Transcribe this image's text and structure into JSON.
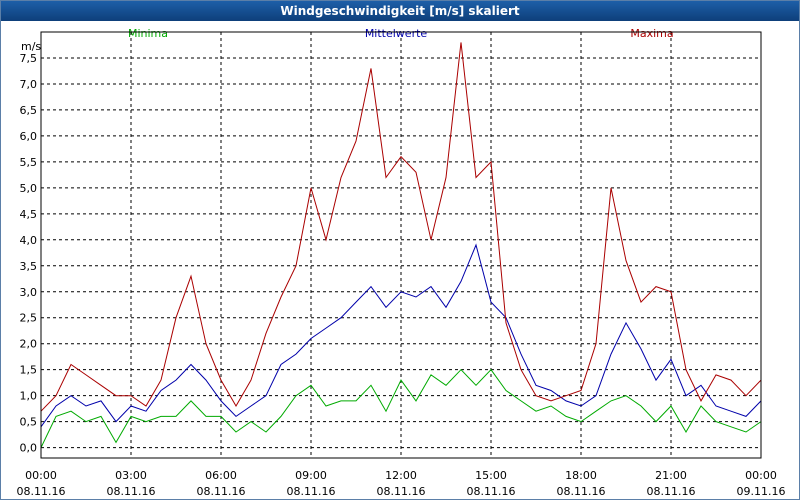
{
  "window": {
    "title": "Windgeschwindigkeit [m/s] skaliert"
  },
  "chart_data": {
    "type": "line",
    "title": "Windgeschwindigkeit [m/s] skaliert",
    "ylabel": "m/s",
    "ylim": [
      -0.2,
      8.0
    ],
    "grid": true,
    "legend_placement": "top",
    "y_ticks": [
      "0,0",
      "0,5",
      "1,0",
      "1,5",
      "2,0",
      "2,5",
      "3,0",
      "3,5",
      "4,0",
      "4,5",
      "5,0",
      "5,5",
      "6,0",
      "6,5",
      "7,0",
      "7,5"
    ],
    "x_ticks": [
      {
        "time": "00:00",
        "date": "08.11.16"
      },
      {
        "time": "03:00",
        "date": "08.11.16"
      },
      {
        "time": "06:00",
        "date": "08.11.16"
      },
      {
        "time": "09:00",
        "date": "08.11.16"
      },
      {
        "time": "12:00",
        "date": "08.11.16"
      },
      {
        "time": "15:00",
        "date": "08.11.16"
      },
      {
        "time": "18:00",
        "date": "08.11.16"
      },
      {
        "time": "21:00",
        "date": "08.11.16"
      },
      {
        "time": "00:00",
        "date": "09.11.16"
      }
    ],
    "x": [
      "00:00",
      "00:30",
      "01:00",
      "01:30",
      "02:00",
      "02:30",
      "03:00",
      "03:30",
      "04:00",
      "04:30",
      "05:00",
      "05:30",
      "06:00",
      "06:30",
      "07:00",
      "07:30",
      "08:00",
      "08:30",
      "09:00",
      "09:30",
      "10:00",
      "10:30",
      "11:00",
      "11:30",
      "12:00",
      "12:30",
      "13:00",
      "13:30",
      "14:00",
      "14:30",
      "15:00",
      "15:30",
      "16:00",
      "16:30",
      "17:00",
      "17:30",
      "18:00",
      "18:30",
      "19:00",
      "19:30",
      "20:00",
      "20:30",
      "21:00",
      "21:30",
      "22:00",
      "22:30",
      "23:00",
      "23:30",
      "00:00"
    ],
    "series": [
      {
        "name": "Minima",
        "color": "#00aa00",
        "values": [
          0.0,
          0.6,
          0.7,
          0.5,
          0.6,
          0.1,
          0.6,
          0.5,
          0.6,
          0.6,
          0.9,
          0.6,
          0.6,
          0.3,
          0.5,
          0.3,
          0.6,
          1.0,
          1.2,
          0.8,
          0.9,
          0.9,
          1.2,
          0.7,
          1.3,
          0.9,
          1.4,
          1.2,
          1.5,
          1.2,
          1.5,
          1.1,
          0.9,
          0.7,
          0.8,
          0.6,
          0.5,
          0.7,
          0.9,
          1.0,
          0.8,
          0.5,
          0.8,
          0.3,
          0.8,
          0.5,
          0.4,
          0.3,
          0.5
        ]
      },
      {
        "name": "Mittelwerte",
        "color": "#0000aa",
        "values": [
          0.4,
          0.8,
          1.0,
          0.8,
          0.9,
          0.5,
          0.8,
          0.7,
          1.1,
          1.3,
          1.6,
          1.3,
          0.9,
          0.6,
          0.8,
          1.0,
          1.6,
          1.8,
          2.1,
          2.3,
          2.5,
          2.8,
          3.1,
          2.7,
          3.0,
          2.9,
          3.1,
          2.7,
          3.2,
          3.9,
          2.8,
          2.5,
          1.8,
          1.2,
          1.1,
          0.9,
          0.8,
          1.0,
          1.8,
          2.4,
          1.9,
          1.3,
          1.7,
          1.0,
          1.2,
          0.8,
          0.7,
          0.6,
          0.9
        ]
      },
      {
        "name": "Maxima",
        "color": "#aa0000",
        "values": [
          0.7,
          1.0,
          1.6,
          1.4,
          1.2,
          1.0,
          1.0,
          0.8,
          1.3,
          2.5,
          3.3,
          2.0,
          1.3,
          0.8,
          1.3,
          2.2,
          2.9,
          3.5,
          5.0,
          4.0,
          5.2,
          5.9,
          7.3,
          5.2,
          5.6,
          5.3,
          4.0,
          5.2,
          7.8,
          5.2,
          5.5,
          2.4,
          1.5,
          1.0,
          0.9,
          1.0,
          1.1,
          2.0,
          5.0,
          3.6,
          2.8,
          3.1,
          3.0,
          1.5,
          0.9,
          1.4,
          1.3,
          1.0,
          1.3
        ]
      }
    ]
  }
}
